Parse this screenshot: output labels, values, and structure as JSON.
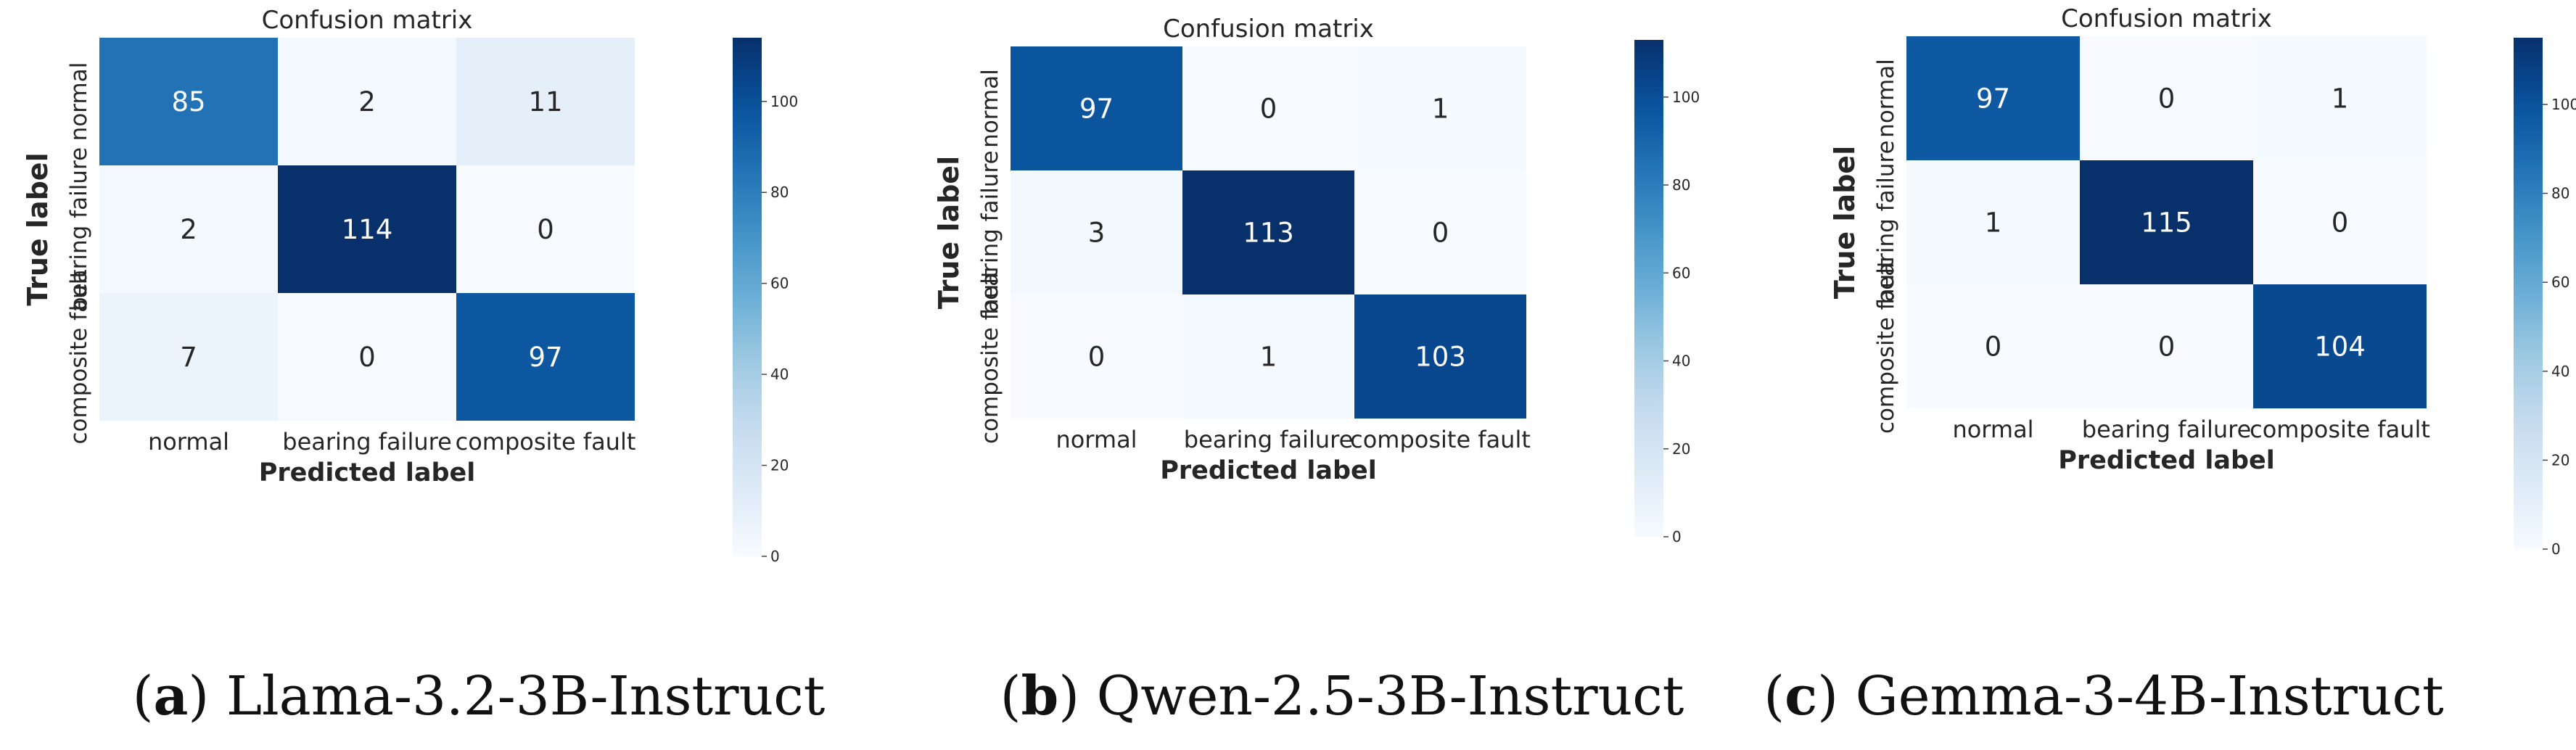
{
  "chart_data": [
    {
      "type": "heatmap",
      "title": "Confusion matrix",
      "xlabel": "Predicted label",
      "ylabel": "True label",
      "x_categories": [
        "normal",
        "bearing failure",
        "composite fault"
      ],
      "y_categories": [
        "normal",
        "bearing failure",
        "composite fault"
      ],
      "values": [
        [
          85,
          2,
          11
        ],
        [
          2,
          114,
          0
        ],
        [
          7,
          0,
          97
        ]
      ],
      "colorbar": {
        "min": 0,
        "max": 114,
        "ticks": [
          0,
          20,
          40,
          60,
          80,
          100
        ]
      },
      "caption": {
        "letter": "a",
        "model": "Llama-3.2-3B-Instruct"
      }
    },
    {
      "type": "heatmap",
      "title": "Confusion matrix",
      "xlabel": "Predicted label",
      "ylabel": "True label",
      "x_categories": [
        "normal",
        "bearing failure",
        "composite fault"
      ],
      "y_categories": [
        "normal",
        "bearing failure",
        "composite fault"
      ],
      "values": [
        [
          97,
          0,
          1
        ],
        [
          3,
          113,
          0
        ],
        [
          0,
          1,
          103
        ]
      ],
      "colorbar": {
        "min": 0,
        "max": 113,
        "ticks": [
          0,
          20,
          40,
          60,
          80,
          100
        ]
      },
      "caption": {
        "letter": "b",
        "model": "Qwen-2.5-3B-Instruct"
      }
    },
    {
      "type": "heatmap",
      "title": "Confusion matrix",
      "xlabel": "Predicted label",
      "ylabel": "True label",
      "x_categories": [
        "normal",
        "bearing failure",
        "composite fault"
      ],
      "y_categories": [
        "normal",
        "bearing failure",
        "composite fault"
      ],
      "values": [
        [
          97,
          0,
          1
        ],
        [
          1,
          115,
          0
        ],
        [
          0,
          0,
          104
        ]
      ],
      "colorbar": {
        "min": 0,
        "max": 115,
        "ticks": [
          0,
          20,
          40,
          60,
          80,
          100
        ]
      },
      "caption": {
        "letter": "c",
        "model": "Gemma-3-4B-Instruct"
      }
    }
  ],
  "colors": {
    "low": "#f7fbff",
    "high": "#08306b",
    "light_text": "#ffffff",
    "dark_text": "#262626"
  }
}
